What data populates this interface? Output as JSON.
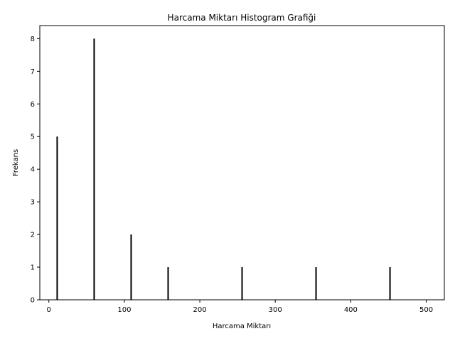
{
  "chart_data": {
    "type": "bar",
    "title": "Harcama Miktarı Histogram Grafiği",
    "xlabel": "Harcama Miktarı",
    "ylabel": "Frekans",
    "xlim": [
      -12,
      524
    ],
    "ylim": [
      0,
      8.4
    ],
    "xticks": [
      0,
      100,
      200,
      300,
      400,
      500
    ],
    "yticks": [
      0,
      1,
      2,
      3,
      4,
      5,
      6,
      7,
      8
    ],
    "x": [
      11,
      60,
      109,
      158,
      256,
      354,
      452
    ],
    "values": [
      5,
      8,
      2,
      1,
      1,
      1,
      1
    ],
    "grid": false,
    "bar_color": "#000000"
  }
}
